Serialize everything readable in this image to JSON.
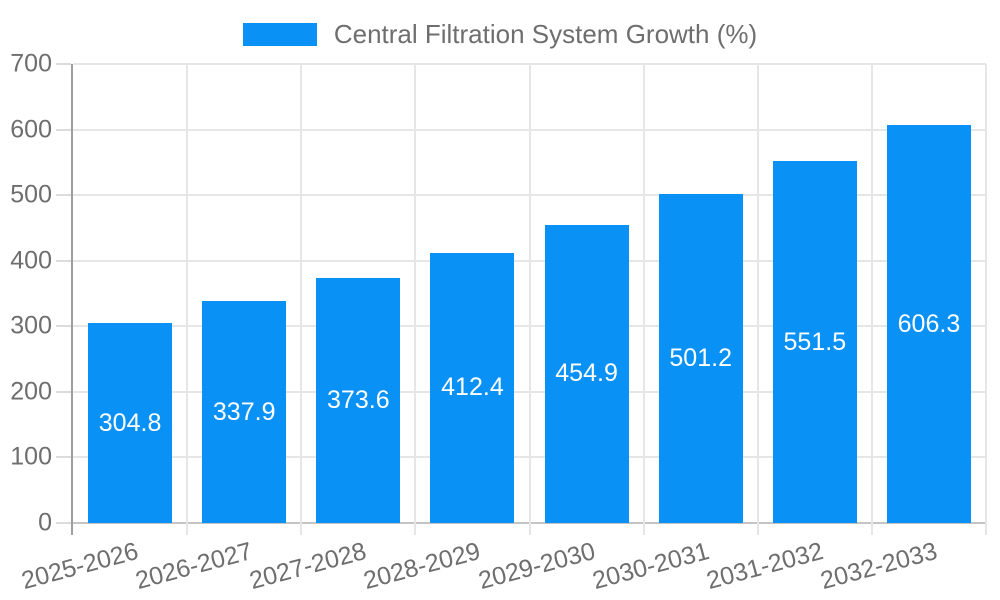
{
  "legend": {
    "label": "Central Filtration System Growth (%)"
  },
  "chart_data": {
    "type": "bar",
    "title": "Central Filtration System Growth (%)",
    "series_name": "Central Filtration System Growth (%)",
    "categories": [
      "2025-2026",
      "2026-2027",
      "2027-2028",
      "2028-2029",
      "2029-2030",
      "2030-2031",
      "2031-2032",
      "2032-2033"
    ],
    "values": [
      304.8,
      337.9,
      373.6,
      412.4,
      454.9,
      501.2,
      551.5,
      606.3
    ],
    "value_labels": [
      "304.8",
      "337.9",
      "373.6",
      "412.4",
      "454.9",
      "501.2",
      "551.5",
      "606.3"
    ],
    "xlabel": "",
    "ylabel": "",
    "ylim": [
      0,
      700
    ],
    "yticks": [
      0,
      100,
      200,
      300,
      400,
      500,
      600,
      700
    ],
    "grid": true,
    "legend_position": "top",
    "colors": {
      "bar": "#0a91f5",
      "bar_label": "#ffffff",
      "axis_text": "#6e6e6e",
      "axis_line": "#9e9e9e",
      "gridline": "#e6e6e6",
      "baseline": "#c4c4c4",
      "tick": "#dcdcdc"
    }
  }
}
